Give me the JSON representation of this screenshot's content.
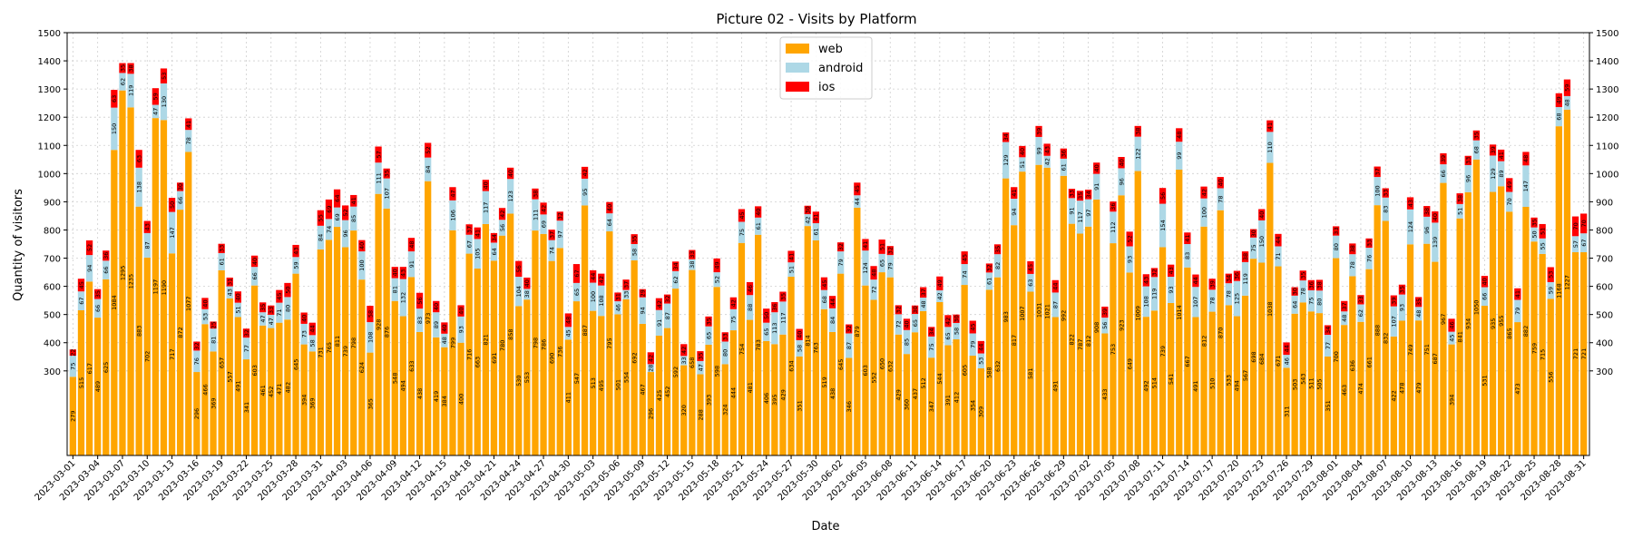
{
  "chart_data": {
    "type": "bar",
    "stacked": true,
    "title": "Picture 02 - Visits by Platform",
    "xlabel": "Date",
    "ylabel": "Quantity of visitors",
    "ylim": [
      0,
      1500
    ],
    "yticks": [
      300,
      400,
      500,
      600,
      700,
      800,
      900,
      1000,
      1100,
      1200,
      1300,
      1400,
      1500
    ],
    "right_axis_ticks": true,
    "grid": true,
    "legend_position": "top-center",
    "categories": [
      "2023-03-01",
      "2023-03-02",
      "2023-03-03",
      "2023-03-04",
      "2023-03-05",
      "2023-03-06",
      "2023-03-07",
      "2023-03-08",
      "2023-03-09",
      "2023-03-10",
      "2023-03-11",
      "2023-03-12",
      "2023-03-13",
      "2023-03-14",
      "2023-03-15",
      "2023-03-16",
      "2023-03-17",
      "2023-03-18",
      "2023-03-19",
      "2023-03-20",
      "2023-03-21",
      "2023-03-22",
      "2023-03-23",
      "2023-03-24",
      "2023-03-25",
      "2023-03-26",
      "2023-03-27",
      "2023-03-28",
      "2023-03-29",
      "2023-03-30",
      "2023-03-31",
      "2023-04-01",
      "2023-04-02",
      "2023-04-03",
      "2023-04-04",
      "2023-04-05",
      "2023-04-06",
      "2023-04-07",
      "2023-04-08",
      "2023-04-09",
      "2023-04-10",
      "2023-04-11",
      "2023-04-12",
      "2023-04-13",
      "2023-04-14",
      "2023-04-15",
      "2023-04-16",
      "2023-04-17",
      "2023-04-18",
      "2023-04-19",
      "2023-04-20",
      "2023-04-21",
      "2023-04-22",
      "2023-04-23",
      "2023-04-24",
      "2023-04-25",
      "2023-04-26",
      "2023-04-27",
      "2023-04-28",
      "2023-04-29",
      "2023-04-30",
      "2023-05-01",
      "2023-05-02",
      "2023-05-03",
      "2023-05-04",
      "2023-05-05",
      "2023-05-06",
      "2023-05-07",
      "2023-05-08",
      "2023-05-09",
      "2023-05-10",
      "2023-05-11",
      "2023-05-12",
      "2023-05-13",
      "2023-05-14",
      "2023-05-15",
      "2023-05-16",
      "2023-05-17",
      "2023-05-18",
      "2023-05-19",
      "2023-05-20",
      "2023-05-21",
      "2023-05-22",
      "2023-05-23",
      "2023-05-24",
      "2023-05-25",
      "2023-05-26",
      "2023-05-27",
      "2023-05-28",
      "2023-05-29",
      "2023-05-30",
      "2023-05-31",
      "2023-06-01",
      "2023-06-02",
      "2023-06-03",
      "2023-06-04",
      "2023-06-05",
      "2023-06-06",
      "2023-06-07",
      "2023-06-08",
      "2023-06-09",
      "2023-06-10",
      "2023-06-11",
      "2023-06-12",
      "2023-06-13",
      "2023-06-14",
      "2023-06-15",
      "2023-06-16",
      "2023-06-17",
      "2023-06-18",
      "2023-06-19",
      "2023-06-20",
      "2023-06-21",
      "2023-06-22",
      "2023-06-23",
      "2023-06-24",
      "2023-06-25",
      "2023-06-26",
      "2023-06-27",
      "2023-06-28",
      "2023-06-29",
      "2023-06-30",
      "2023-07-01",
      "2023-07-02",
      "2023-07-03",
      "2023-07-04",
      "2023-07-05",
      "2023-07-06",
      "2023-07-07",
      "2023-07-08",
      "2023-07-09",
      "2023-07-10",
      "2023-07-11",
      "2023-07-12",
      "2023-07-13",
      "2023-07-14",
      "2023-07-15",
      "2023-07-16",
      "2023-07-17",
      "2023-07-18",
      "2023-07-19",
      "2023-07-20",
      "2023-07-21",
      "2023-07-22",
      "2023-07-23",
      "2023-07-24",
      "2023-07-25",
      "2023-07-26",
      "2023-07-27",
      "2023-07-28",
      "2023-07-29",
      "2023-07-30",
      "2023-07-31",
      "2023-08-01",
      "2023-08-02",
      "2023-08-03",
      "2023-08-04",
      "2023-08-05",
      "2023-08-06",
      "2023-08-07",
      "2023-08-08",
      "2023-08-09",
      "2023-08-10",
      "2023-08-11",
      "2023-08-12",
      "2023-08-13",
      "2023-08-14",
      "2023-08-15",
      "2023-08-16",
      "2023-08-17",
      "2023-08-18",
      "2023-08-19",
      "2023-08-20",
      "2023-08-21",
      "2023-08-22",
      "2023-08-23",
      "2023-08-24",
      "2023-08-25",
      "2023-08-26",
      "2023-08-27",
      "2023-08-28",
      "2023-08-29",
      "2023-08-30",
      "2023-08-31"
    ],
    "tick_labels": [
      "2023-03-01",
      "2023-03-04",
      "2023-03-07",
      "2023-03-10",
      "2023-03-13",
      "2023-03-16",
      "2023-03-19",
      "2023-03-22",
      "2023-03-25",
      "2023-03-28",
      "2023-03-31",
      "2023-04-03",
      "2023-04-06",
      "2023-04-09",
      "2023-04-12",
      "2023-04-15",
      "2023-04-18",
      "2023-04-21",
      "2023-04-24",
      "2023-04-27",
      "2023-04-30",
      "2023-05-03",
      "2023-05-06",
      "2023-05-09",
      "2023-05-12",
      "2023-05-15",
      "2023-05-18",
      "2023-05-21",
      "2023-05-24",
      "2023-05-27",
      "2023-05-30",
      "2023-06-02",
      "2023-06-05",
      "2023-06-08",
      "2023-06-11",
      "2023-06-14",
      "2023-06-17",
      "2023-06-20",
      "2023-06-23",
      "2023-06-26",
      "2023-06-29",
      "2023-07-02",
      "2023-07-05",
      "2023-07-08",
      "2023-07-11",
      "2023-07-14",
      "2023-07-17",
      "2023-07-20",
      "2023-07-23",
      "2023-07-26",
      "2023-07-29",
      "2023-08-01",
      "2023-08-04",
      "2023-08-07",
      "2023-08-10",
      "2023-08-13",
      "2023-08-16",
      "2023-08-19",
      "2023-08-22",
      "2023-08-25",
      "2023-08-28",
      "2023-08-31"
    ],
    "series": [
      {
        "name": "web",
        "color": "#FFA500",
        "values": [
          279,
          515,
          617,
          489,
          625,
          1084,
          1295,
          1235,
          883,
          702,
          1197,
          1190,
          717,
          872,
          1077,
          296,
          466,
          369,
          657,
          557,
          491,
          341,
          603,
          461,
          452,
          471,
          482,
          645,
          394,
          369,
          731,
          765,
          811,
          739,
          798,
          624,
          365,
          928,
          876,
          548,
          494,
          633,
          438,
          973,
          419,
          384,
          799,
          400,
          716,
          663,
          821,
          691,
          780,
          858,
          530,
          553,
          798,
          786,
          690,
          736,
          411,
          547,
          887,
          513,
          495,
          795,
          501,
          554,
          692,
          467,
          296,
          425,
          452,
          592,
          320,
          658,
          288,
          393,
          598,
          324,
          444,
          754,
          481,
          783,
          406,
          395,
          429,
          634,
          351,
          814,
          763,
          519,
          438,
          645,
          346,
          879,
          603,
          552,
          650,
          632,
          429,
          360,
          437,
          512,
          347,
          544,
          391,
          412,
          605,
          354,
          309,
          588,
          632,
          983,
          817,
          1007,
          581,
          1031,
          1021,
          491,
          992,
          822,
          787,
          812,
          908,
          433,
          753,
          923,
          649,
          1009,
          492,
          514,
          739,
          541,
          1014,
          667,
          491,
          812,
          510,
          870,
          533,
          494,
          567,
          698,
          684,
          1038,
          671,
          311,
          503,
          543,
          511,
          505,
          351,
          700,
          463,
          636,
          474,
          661,
          888,
          832,
          422,
          478,
          749,
          479,
          751,
          687,
          967,
          394,
          841,
          934,
          1050,
          531,
          935,
          955,
          865,
          473,
          882,
          759,
          715,
          556,
          1168,
          1227,
          721,
          721
        ]
      },
      {
        "name": "android",
        "color": "#ADD8E6",
        "values": [
          75,
          67,
          94,
          66,
          66,
          150,
          62,
          119,
          138,
          87,
          47,
          130,
          147,
          66,
          78,
          76,
          53,
          81,
          61,
          43,
          51,
          77,
          66,
          47,
          47,
          71,
          80,
          59,
          73,
          58,
          84,
          74,
          69,
          96,
          85,
          100,
          108,
          111,
          107,
          81,
          132,
          91,
          83,
          84,
          89,
          48,
          106,
          93,
          67,
          105,
          117,
          64,
          56,
          123,
          104,
          38,
          111,
          69,
          74,
          97,
          45,
          65,
          95,
          100,
          108,
          64,
          46,
          33,
          58,
          94,
          28,
          91,
          87,
          62,
          33,
          38,
          47,
          65,
          52,
          80,
          75,
          75,
          88,
          61,
          65,
          113,
          117,
          51,
          58,
          42,
          61,
          68,
          84,
          79,
          87,
          44,
          124,
          72,
          65,
          79,
          72,
          85,
          65,
          48,
          75,
          42,
          65,
          58,
          74,
          79,
          53,
          61,
          82,
          129,
          94,
          51,
          63,
          99,
          42,
          87,
          61,
          91,
          117,
          97,
          91,
          56,
          112,
          96,
          93,
          122,
          108,
          119,
          154,
          93,
          99,
          83,
          107,
          100,
          78,
          78,
          78,
          125,
          119,
          75,
          150,
          110,
          71,
          46,
          64,
          78,
          75,
          80,
          77,
          80,
          48,
          78,
          62,
          76,
          100,
          83,
          107,
          93,
          124,
          48,
          96,
          139,
          66,
          45,
          51,
          96,
          68,
          66,
          129,
          89,
          70,
          79,
          147,
          50,
          55,
          59,
          68,
          48,
          57,
          67
        ]
      },
      {
        "name": "ios",
        "color": "#FF0000",
        "values": [
          22,
          45,
          52,
          35,
          36,
          63,
          35,
          38,
          63,
          43,
          59,
          53,
          50,
          30,
          41,
          32,
          40,
          25,
          33,
          31,
          40,
          32,
          40,
          35,
          33,
          45,
          50,
          43,
          40,
          44,
          55,
          69,
          64,
          52,
          41,
          40,
          58,
          57,
          35,
          40,
          43,
          48,
          56,
          52,
          40,
          40,
          47,
          40,
          37,
          41,
          40,
          34,
          42,
          40,
          56,
          40,
          38,
          42,
          37,
          32,
          48,
          67,
          42,
          44,
          42,
          40,
          31,
          37,
          35,
          29,
          42,
          42,
          32,
          34,
          42,
          33,
          35,
          35,
          49,
          33,
          42,
          45,
          46,
          40,
          50,
          36,
          35,
          41,
          40,
          30,
          41,
          45,
          44,
          32,
          32,
          45,
          41,
          48,
          51,
          32,
          32,
          40,
          30,
          37,
          34,
          49,
          42,
          30,
          45,
          45,
          44,
          32,
          35,
          34,
          41,
          40,
          45,
          39,
          43,
          44,
          36,
          33,
          35,
          34,
          40,
          39,
          36,
          40,
          52,
          38,
          43,
          32,
          56,
          43,
          48,
          41,
          44,
          42,
          39,
          40,
          34,
          36,
          38,
          30,
          40,
          41,
          44,
          44,
          30,
          35,
          36,
          38,
          34,
          33,
          37,
          38,
          33,
          33,
          37,
          33,
          39,
          35,
          43,
          35,
          38,
          40,
          39,
          46,
          38,
          33,
          35,
          40,
          39,
          41,
          49,
          41,
          48,
          35,
          51,
          53,
          49,
          59,
          70,
          70
        ]
      }
    ]
  }
}
